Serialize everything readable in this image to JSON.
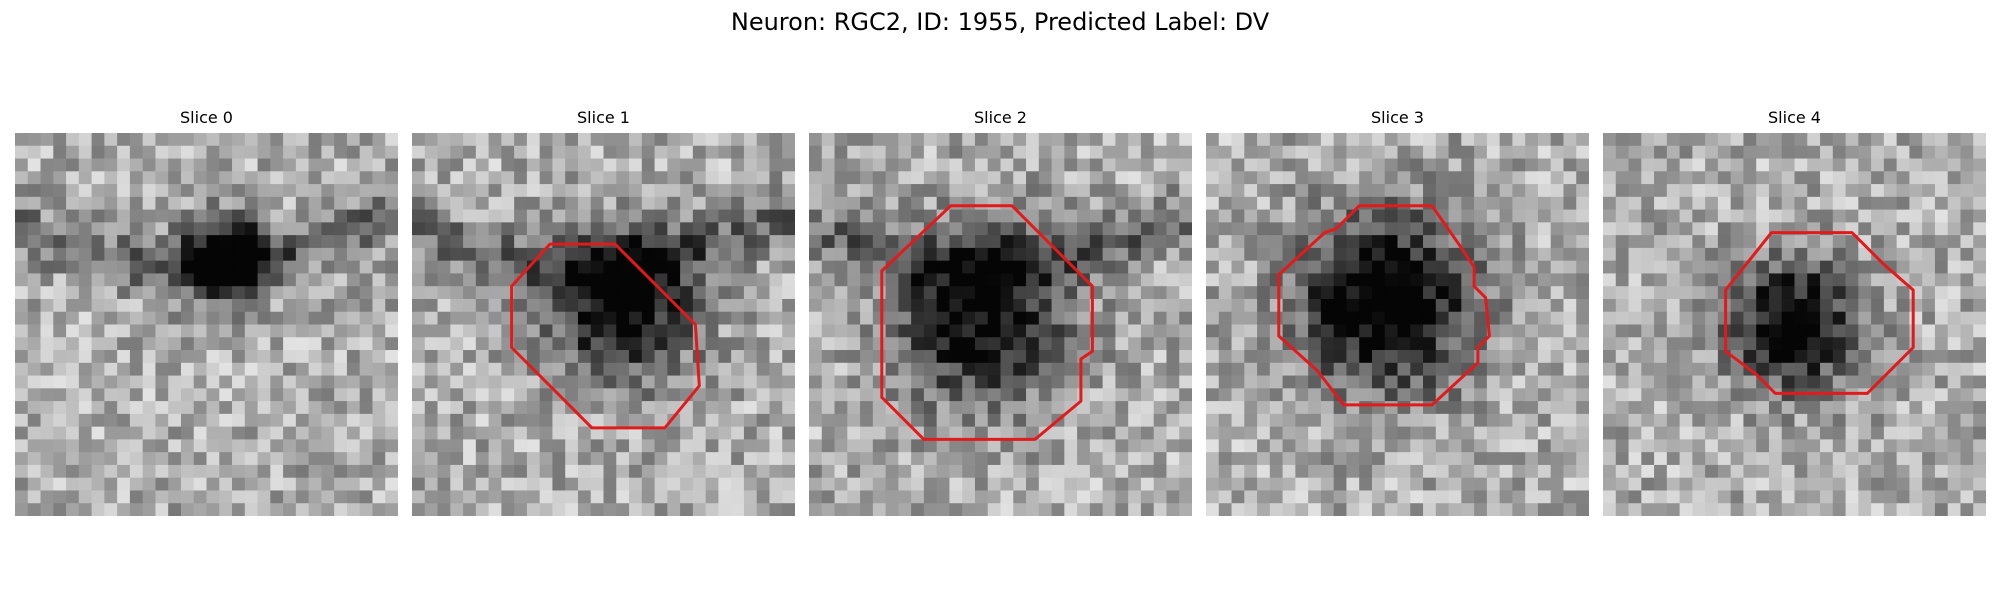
{
  "figure": {
    "title": "Neuron: RGC2, ID: 1955, Predicted Label: DV"
  },
  "panels": [
    {
      "title": "Slice 0",
      "seed": 11,
      "blob_center": [
        0.55,
        0.33
      ],
      "blob_radius": 0.12,
      "blob_strength": 0.85,
      "band": true,
      "contour": null
    },
    {
      "title": "Slice 1",
      "seed": 23,
      "blob_center": [
        0.55,
        0.45
      ],
      "blob_radius": 0.2,
      "blob_strength": 0.75,
      "band": true,
      "contour": [
        [
          0.36,
          0.29
        ],
        [
          0.53,
          0.29
        ],
        [
          0.62,
          0.38
        ],
        [
          0.74,
          0.5
        ],
        [
          0.75,
          0.66
        ],
        [
          0.66,
          0.77
        ],
        [
          0.47,
          0.77
        ],
        [
          0.37,
          0.67
        ],
        [
          0.26,
          0.56
        ],
        [
          0.26,
          0.4
        ]
      ]
    },
    {
      "title": "Slice 2",
      "seed": 37,
      "blob_center": [
        0.45,
        0.48
      ],
      "blob_radius": 0.24,
      "blob_strength": 0.7,
      "band": true,
      "contour": [
        [
          0.37,
          0.19
        ],
        [
          0.53,
          0.19
        ],
        [
          0.67,
          0.33
        ],
        [
          0.74,
          0.4
        ],
        [
          0.74,
          0.57
        ],
        [
          0.71,
          0.59
        ],
        [
          0.71,
          0.7
        ],
        [
          0.59,
          0.8
        ],
        [
          0.3,
          0.8
        ],
        [
          0.19,
          0.69
        ],
        [
          0.19,
          0.36
        ]
      ]
    },
    {
      "title": "Slice 3",
      "seed": 41,
      "blob_center": [
        0.47,
        0.44
      ],
      "blob_radius": 0.24,
      "blob_strength": 0.85,
      "band": false,
      "contour": [
        [
          0.4,
          0.19
        ],
        [
          0.59,
          0.19
        ],
        [
          0.66,
          0.29
        ],
        [
          0.7,
          0.35
        ],
        [
          0.7,
          0.4
        ],
        [
          0.73,
          0.43
        ],
        [
          0.74,
          0.53
        ],
        [
          0.71,
          0.56
        ],
        [
          0.71,
          0.6
        ],
        [
          0.59,
          0.71
        ],
        [
          0.36,
          0.71
        ],
        [
          0.29,
          0.62
        ],
        [
          0.19,
          0.53
        ],
        [
          0.19,
          0.37
        ],
        [
          0.31,
          0.26
        ],
        [
          0.34,
          0.25
        ]
      ]
    },
    {
      "title": "Slice 4",
      "seed": 53,
      "blob_center": [
        0.5,
        0.5
      ],
      "blob_radius": 0.18,
      "blob_strength": 0.75,
      "band": false,
      "contour": [
        [
          0.44,
          0.26
        ],
        [
          0.65,
          0.26
        ],
        [
          0.73,
          0.34
        ],
        [
          0.81,
          0.41
        ],
        [
          0.81,
          0.56
        ],
        [
          0.69,
          0.68
        ],
        [
          0.45,
          0.68
        ],
        [
          0.4,
          0.63
        ],
        [
          0.32,
          0.57
        ],
        [
          0.32,
          0.41
        ]
      ]
    }
  ],
  "colors": {
    "contour": "#e31a1c",
    "background": "#ffffff"
  }
}
